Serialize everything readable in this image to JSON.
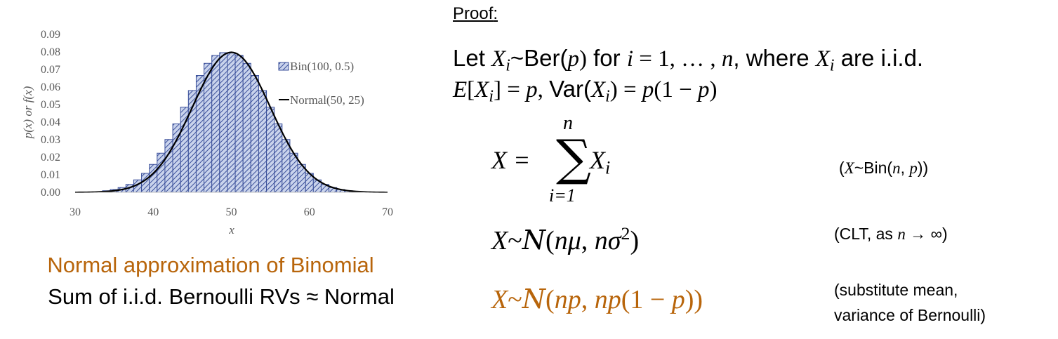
{
  "chart_data": {
    "type": "bar",
    "x": [
      34,
      35,
      36,
      37,
      38,
      39,
      40,
      41,
      42,
      43,
      44,
      45,
      46,
      47,
      48,
      49,
      50,
      51,
      52,
      53,
      54,
      55,
      56,
      57,
      58,
      59,
      60,
      61,
      62,
      63,
      64,
      65,
      66
    ],
    "values": [
      0.0009,
      0.0016,
      0.0027,
      0.0045,
      0.0071,
      0.0108,
      0.0159,
      0.0223,
      0.0301,
      0.039,
      0.0485,
      0.058,
      0.0666,
      0.0735,
      0.078,
      0.0796,
      0.0796,
      0.078,
      0.0735,
      0.0666,
      0.058,
      0.0485,
      0.039,
      0.0301,
      0.0223,
      0.0159,
      0.0108,
      0.0071,
      0.0045,
      0.0027,
      0.0016,
      0.0009,
      0.0005
    ],
    "bar_series_name": "Bin(100, 0.5)",
    "line_series_name": "Normal(50, 25)",
    "line_mean": 50,
    "line_variance": 25,
    "xlabel": "x",
    "ylabel": "p(x) or f(x)",
    "xlim": [
      30,
      70
    ],
    "ylim": [
      0,
      0.09
    ],
    "xticks": [
      "30",
      "40",
      "50",
      "60",
      "70"
    ],
    "yticks": [
      "0.00",
      "0.01",
      "0.02",
      "0.03",
      "0.04",
      "0.05",
      "0.06",
      "0.07",
      "0.08",
      "0.09"
    ],
    "legend_position": "top-right",
    "grid": false,
    "colors": {
      "bar_fill": "#c9d3ec",
      "bar_hatch": "#3a4f9a",
      "line": "#000000"
    }
  },
  "caption": {
    "title": "Normal approximation of Binomial",
    "subtitle": "Sum of i.i.d. Bernoulli RVs ≈ Normal"
  },
  "proof": {
    "heading": "Proof",
    "colon": ":",
    "line1": {
      "let": "Let ",
      "x": "X",
      "i": "i",
      "tilde": "~Ber(",
      "p": "p",
      "close": ")",
      " for": " for ",
      "i2": "i",
      "eq": " = 1, … , ",
      "n": "n",
      "where": ", where ",
      "x2": "X",
      "i3": "i",
      "tail": " are i.i.d."
    },
    "line2": {
      "e": "E",
      "bracket_open": "[",
      "x": "X",
      "i": "i",
      "bracket_close": "]",
      "eq_p": " = ",
      "p": "p",
      "comma": ", ",
      "var": "Var(",
      "x2": "X",
      "i2": "i",
      "close": ") = ",
      "p2": "p",
      "paren": "(1 − ",
      "p3": "p",
      "end": ")"
    },
    "sum": {
      "lhs": "X = ",
      "sigma": "∑",
      "top": "n",
      "bottom": "i=1",
      "term": "X",
      "sub": "i"
    },
    "annot1": {
      "open": "(",
      "x": "X",
      "tilde": "~Bin(",
      "n": "n",
      "comma": ", ",
      "p": "p",
      "close": "))"
    },
    "line4": {
      "x": "X",
      "tilde": "~",
      "cal": "N",
      "open": "(",
      "n": "nμ",
      "comma": ", ",
      "n2": "nσ",
      "sq": "2",
      "close": ")"
    },
    "annot2": {
      "open": "(CLT, as ",
      "n": "n",
      "arrow": " → ∞)"
    },
    "line5": {
      "x": "X",
      "tilde": "~",
      "cal": "N",
      "open": "(",
      "np": "np",
      "comma": ", ",
      "np2": "np",
      "paren": "(1 − ",
      "p": "p",
      "close": "))"
    },
    "annot3a": "(substitute mean,",
    "annot3b": "variance of Bernoulli)"
  }
}
